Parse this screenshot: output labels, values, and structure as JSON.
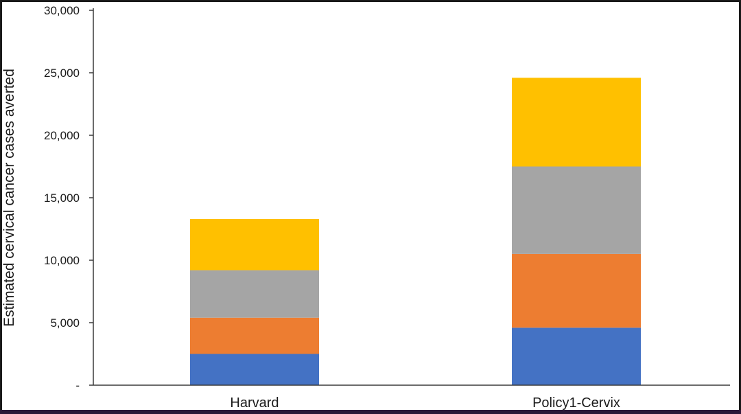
{
  "chart_data": {
    "type": "bar",
    "stacked": true,
    "title": "",
    "xlabel": "",
    "ylabel": "Estimated cervical cancer cases averted",
    "ylim": [
      0,
      30000
    ],
    "yticks": [
      0,
      5000,
      10000,
      15000,
      20000,
      25000,
      30000
    ],
    "ytick_labels": [
      "-",
      "5,000",
      "10,000",
      "15,000",
      "20,000",
      "25,000",
      "30,000"
    ],
    "categories": [
      "Harvard",
      "Policy1-Cervix"
    ],
    "series": [
      {
        "color": "#4472C4",
        "values": [
          2500,
          4600
        ]
      },
      {
        "color": "#ED7D31",
        "values": [
          2900,
          5900
        ]
      },
      {
        "color": "#A5A5A5",
        "values": [
          3800,
          7000
        ]
      },
      {
        "color": "#FFC000",
        "values": [
          4100,
          7100
        ]
      }
    ],
    "legend": "none",
    "grid": false
  }
}
